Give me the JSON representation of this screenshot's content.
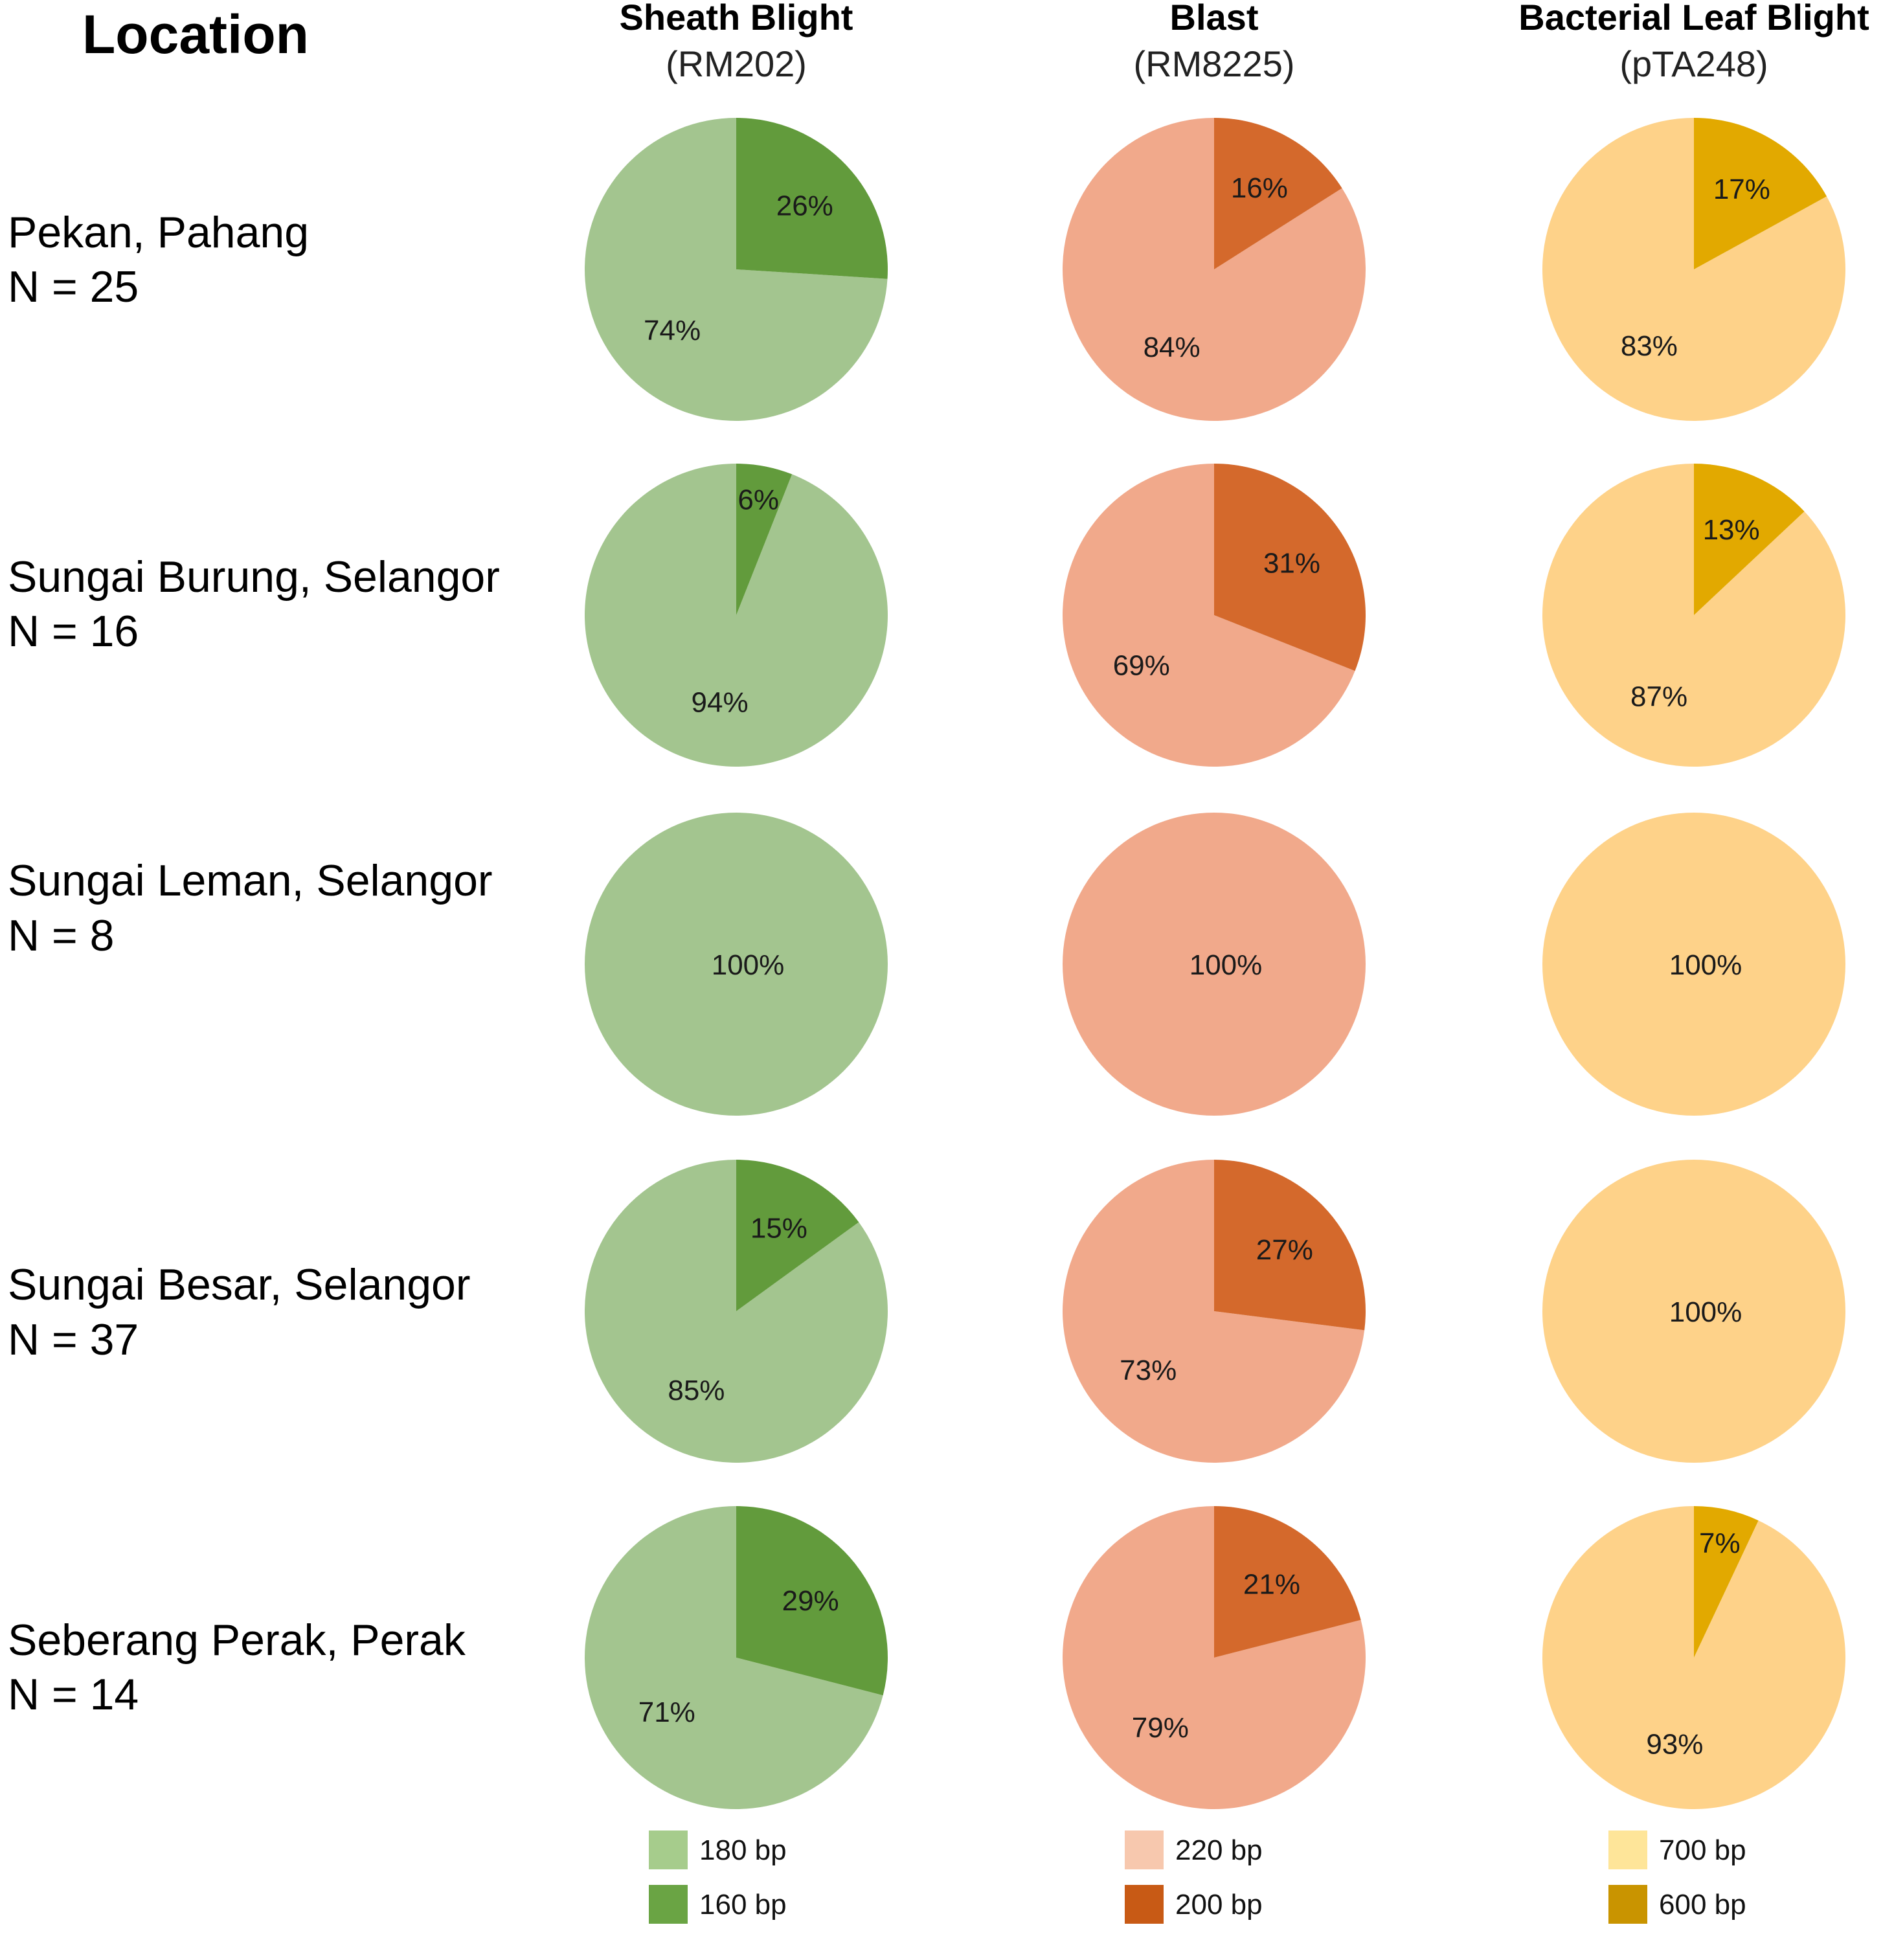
{
  "location_header": "Location",
  "chart_data": {
    "type": "pie",
    "title": "",
    "columns": [
      {
        "title": "Sheath Blight",
        "marker": "(RM202)",
        "colors": {
          "major": "#a3c58f",
          "minor": "#629b3c"
        },
        "legend": [
          {
            "label": "180 bp",
            "color": "#a6cc8c"
          },
          {
            "label": "160 bp",
            "color": "#6aa444"
          }
        ]
      },
      {
        "title": "Blast",
        "marker": "(RM8225)",
        "colors": {
          "major": "#f1a98b",
          "minor": "#d4692c"
        },
        "legend": [
          {
            "label": "220 bp",
            "color": "#f7c8ae"
          },
          {
            "label": "200 bp",
            "color": "#c85a15"
          }
        ]
      },
      {
        "title": "Bacterial Leaf Blight",
        "marker": "(pTA248)",
        "colors": {
          "major": "#fed289",
          "minor": "#e2a900"
        },
        "legend": [
          {
            "label": "700 bp",
            "color": "#fee599"
          },
          {
            "label": "600 bp",
            "color": "#c99400"
          }
        ]
      }
    ],
    "rows": [
      {
        "location": "Pekan, Pahang",
        "n": "N = 25",
        "values": [
          {
            "minor": 26,
            "major": 74
          },
          {
            "minor": 16,
            "major": 84
          },
          {
            "minor": 17,
            "major": 83
          }
        ]
      },
      {
        "location": "Sungai Burung, Selangor",
        "n": "N = 16",
        "values": [
          {
            "minor": 6,
            "major": 94
          },
          {
            "minor": 31,
            "major": 69
          },
          {
            "minor": 13,
            "major": 87
          }
        ]
      },
      {
        "location": "Sungai Leman, Selangor",
        "n": "N = 8",
        "values": [
          {
            "minor": 0,
            "major": 100
          },
          {
            "minor": 0,
            "major": 100
          },
          {
            "minor": 0,
            "major": 100
          }
        ]
      },
      {
        "location": "Sungai Besar, Selangor",
        "n": "N = 37",
        "values": [
          {
            "minor": 15,
            "major": 85
          },
          {
            "minor": 27,
            "major": 73
          },
          {
            "minor": 0,
            "major": 100
          }
        ]
      },
      {
        "location": "Seberang Perak, Perak",
        "n": "N = 14",
        "values": [
          {
            "minor": 29,
            "major": 71
          },
          {
            "minor": 21,
            "major": 79
          },
          {
            "minor": 7,
            "major": 93
          }
        ]
      }
    ]
  }
}
